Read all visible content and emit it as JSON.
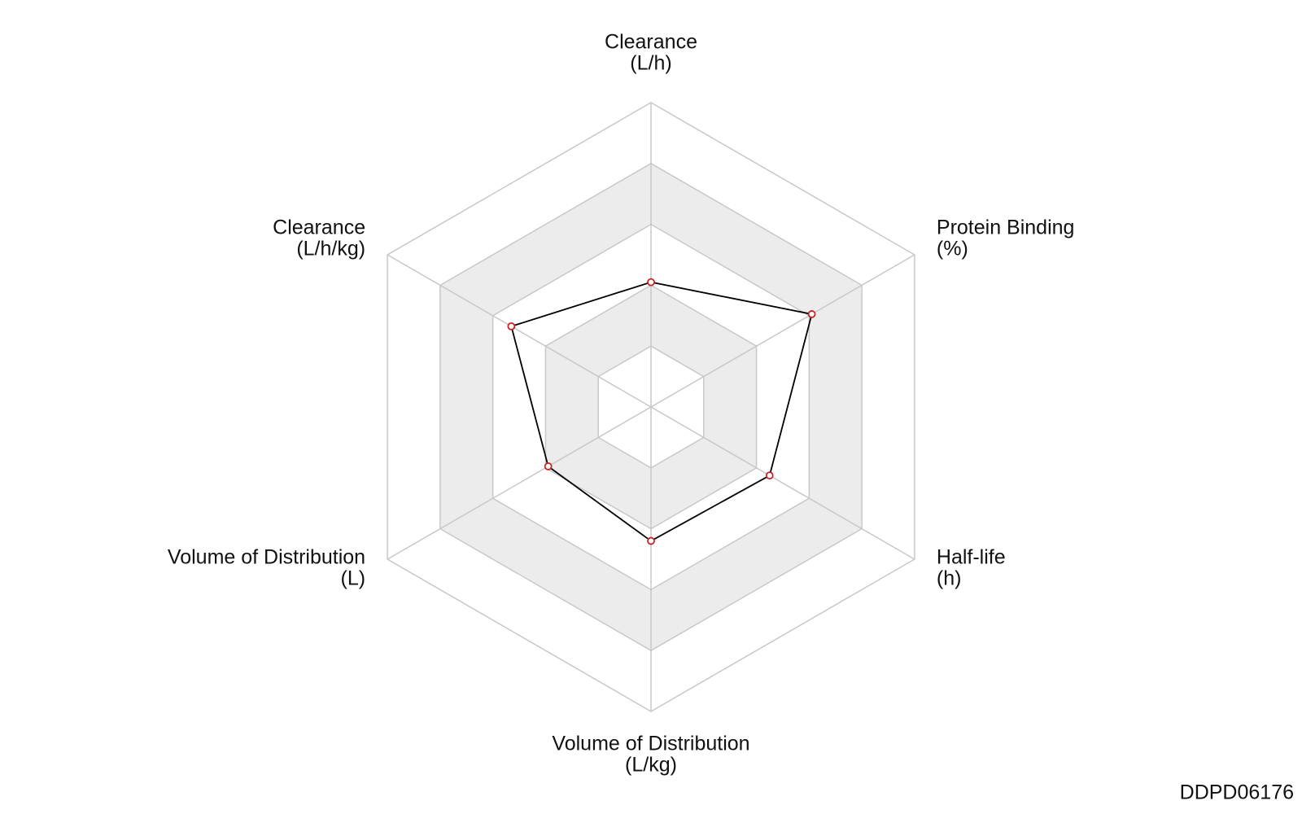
{
  "chart_data": {
    "type": "radar",
    "categories": [
      "Clearance",
      "Protein Binding",
      "Half-life",
      "Volume of Distribution",
      "Volume of Distribution",
      "Clearance"
    ],
    "category_units": [
      "(L/h)",
      "(%)",
      "(h)",
      "(L/kg)",
      "(L)",
      "(L/h/kg)"
    ],
    "values": [
      0.41,
      0.61,
      0.45,
      0.44,
      0.39,
      0.53
    ],
    "rlim": [
      0,
      1
    ],
    "rticks": [
      0.2,
      0.4,
      0.6,
      0.8,
      1
    ],
    "color": "#000000",
    "marker_color": "#cc2222",
    "band_colors": [
      "#ffffff",
      "#ececec"
    ],
    "watermark": "DDPD06176"
  }
}
